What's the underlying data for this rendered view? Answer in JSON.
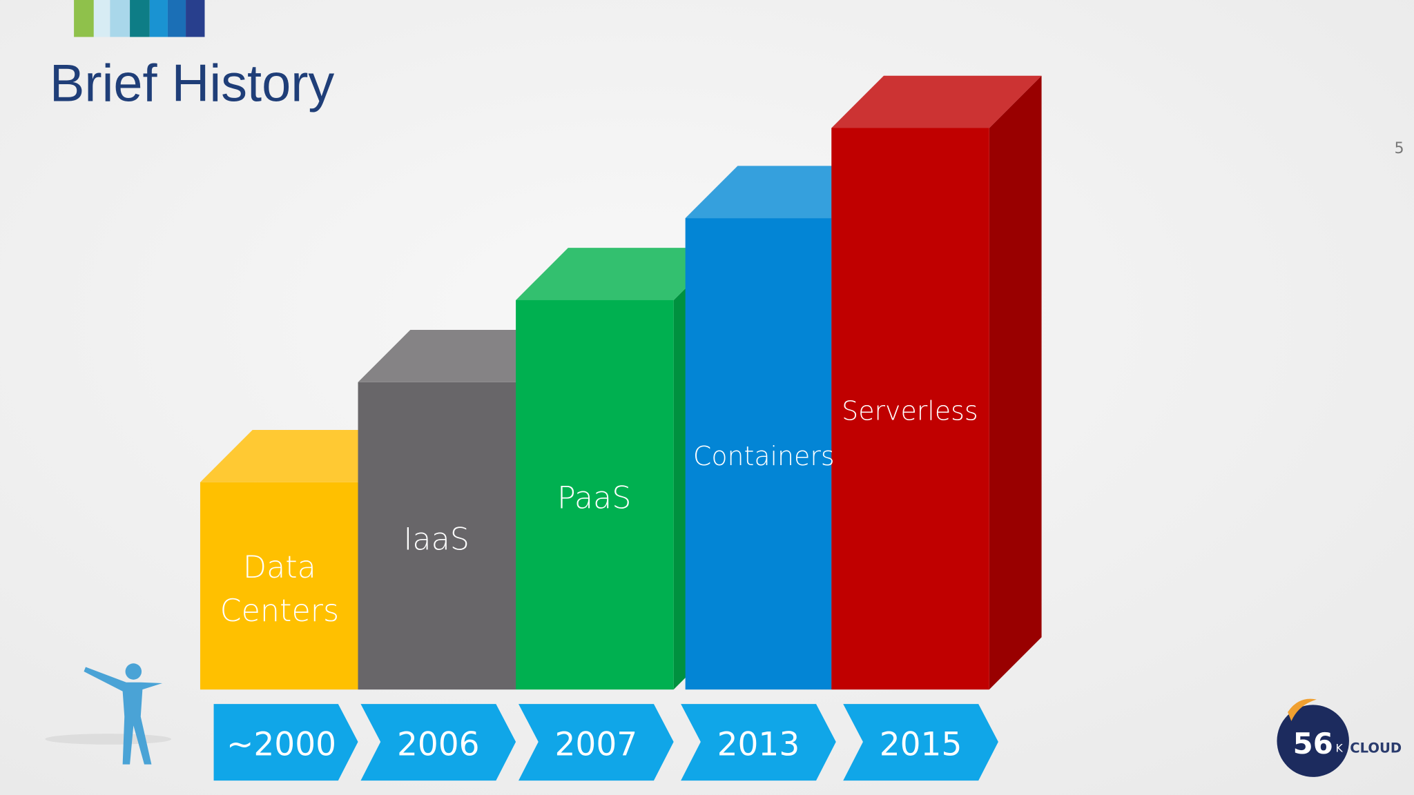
{
  "header": {
    "title": "Brief History",
    "page_number": "5"
  },
  "steps": [
    {
      "label": [
        "Data",
        "Centers"
      ],
      "year": "~2000"
    },
    {
      "label": [
        "IaaS"
      ],
      "year": "2006"
    },
    {
      "label": [
        "PaaS"
      ],
      "year": "2007"
    },
    {
      "label": [
        "Containers"
      ],
      "year": "2013"
    },
    {
      "label": [
        "Serverless"
      ],
      "year": "2015"
    }
  ],
  "logo": {
    "number": "56",
    "letter": "K",
    "word": "CLOUD"
  }
}
